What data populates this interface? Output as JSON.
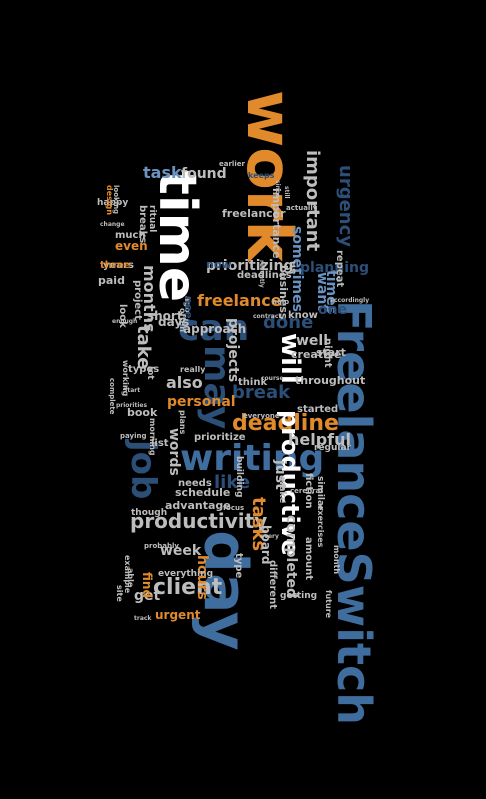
{
  "background": "#000000",
  "palette": {
    "orange": "#e08a2c",
    "blue": "#3f6e9e",
    "lightblue": "#6a93c2",
    "grey": "#bdbdbd",
    "white": "#ffffff",
    "darkblue": "#2c4f78",
    "darkorange": "#a85a1c"
  },
  "words": [
    "work",
    "time",
    "day",
    "FreelanceSwitch",
    "can",
    "may",
    "writing",
    "deadline",
    "job",
    "will",
    "productive",
    "productivity",
    "client",
    "important",
    "urgency",
    "take",
    "projects",
    "done",
    "break",
    "tasks",
    "freelance",
    "months",
    "task",
    "found",
    "prioritizing",
    "sometimes",
    "planning",
    "want",
    "well",
    "times",
    "one",
    "helpful",
    "also",
    "personal",
    "words",
    "like",
    "week",
    "hours",
    "get",
    "urgent",
    "everything",
    "find",
    "even",
    "paid",
    "years",
    "breaks",
    "ritual",
    "happy",
    "looking",
    "design",
    "three",
    "change",
    "much",
    "ago",
    "need",
    "now",
    "deadlines",
    "business",
    "importance",
    "freelancer",
    "us",
    "help",
    "know",
    "approach",
    "really",
    "creative",
    "throughout",
    "night",
    "start",
    "repeat",
    "accordingly",
    "plans",
    "contract",
    "often",
    "working",
    "types",
    "book",
    "morning",
    "complete",
    "priorities",
    "Start",
    "paying",
    "lot",
    "list",
    "prioritize",
    "needs",
    "schedule",
    "advantage",
    "though",
    "building",
    "think",
    "started",
    "everyone",
    "wake",
    "fiction",
    "regular",
    "similar",
    "exercises",
    "amount",
    "completed",
    "future",
    "month",
    "board",
    "getting",
    "different",
    "just",
    "cerebral",
    "type",
    "every",
    "probably",
    "example",
    "able",
    "site",
    "track",
    "enough",
    "look",
    "project",
    "short",
    "course",
    "focus",
    "earlier",
    "still",
    "actually",
    "keeps",
    "recently",
    "days",
    "since"
  ]
}
